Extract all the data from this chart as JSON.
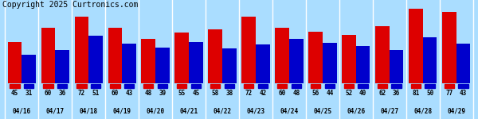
{
  "dates": [
    "04/16",
    "04/17",
    "04/18",
    "04/19",
    "04/20",
    "04/21",
    "04/22",
    "04/23",
    "04/24",
    "04/25",
    "04/26",
    "04/27",
    "04/28",
    "04/29"
  ],
  "highs": [
    45,
    60,
    72,
    60,
    48,
    55,
    58,
    72,
    60,
    56,
    52,
    62,
    81,
    77
  ],
  "lows": [
    31,
    36,
    51,
    43,
    39,
    45,
    38,
    42,
    48,
    44,
    40,
    36,
    50,
    43
  ],
  "high_color": "#dd0000",
  "low_color": "#0000cc",
  "background_color": "#aaddff",
  "label_bg_color": "#99ee88",
  "title": "Copyright 2025 Curtronics.com",
  "title_fontsize": 7,
  "bar_width": 0.42,
  "ylim_min": 0,
  "ylim_max": 90
}
